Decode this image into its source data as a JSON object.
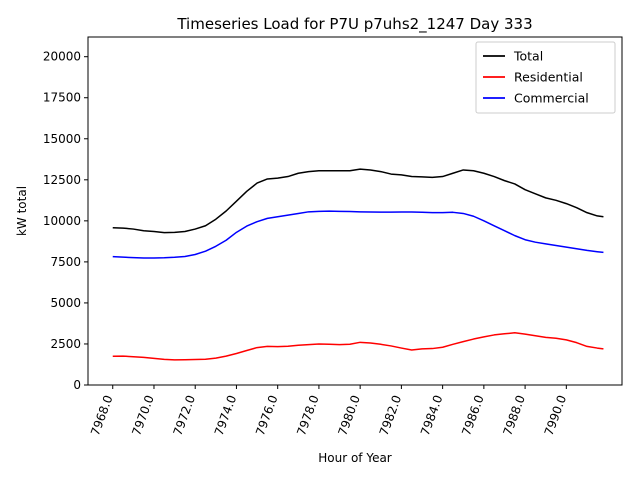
{
  "chart_data": {
    "type": "line",
    "title": "Timeseries Load for P7U p7uhs2_1247  Day 333",
    "xlabel": "Hour of Year",
    "ylabel": "kW total",
    "xlim": [
      7966.8,
      7992.7
    ],
    "ylim": [
      0,
      21200
    ],
    "grid": false,
    "legend_position": "top-right",
    "x_ticks": [
      7968,
      7970,
      7972,
      7974,
      7976,
      7978,
      7980,
      7982,
      7984,
      7986,
      7988,
      7990
    ],
    "x_tick_labels": [
      "7968.0",
      "7970.0",
      "7972.0",
      "7974.0",
      "7976.0",
      "7978.0",
      "7980.0",
      "7982.0",
      "7984.0",
      "7986.0",
      "7988.0",
      "7990.0"
    ],
    "y_ticks": [
      0,
      2500,
      5000,
      7500,
      10000,
      12500,
      15000,
      17500,
      20000
    ],
    "y_tick_labels": [
      "0",
      "2500",
      "5000",
      "7500",
      "10000",
      "12500",
      "15000",
      "17500",
      "20000"
    ],
    "series": [
      {
        "name": "Total",
        "color": "#000000",
        "points": [
          [
            7968.0,
            9580
          ],
          [
            7968.5,
            9560
          ],
          [
            7969.0,
            9500
          ],
          [
            7969.5,
            9400
          ],
          [
            7970.0,
            9350
          ],
          [
            7970.5,
            9280
          ],
          [
            7971.0,
            9300
          ],
          [
            7971.5,
            9350
          ],
          [
            7972.0,
            9500
          ],
          [
            7972.5,
            9700
          ],
          [
            7973.0,
            10100
          ],
          [
            7973.5,
            10600
          ],
          [
            7974.0,
            11200
          ],
          [
            7974.5,
            11800
          ],
          [
            7975.0,
            12300
          ],
          [
            7975.5,
            12550
          ],
          [
            7976.0,
            12600
          ],
          [
            7976.5,
            12700
          ],
          [
            7977.0,
            12900
          ],
          [
            7977.5,
            13000
          ],
          [
            7978.0,
            13050
          ],
          [
            7978.5,
            13050
          ],
          [
            7979.0,
            13050
          ],
          [
            7979.5,
            13050
          ],
          [
            7980.0,
            13150
          ],
          [
            7980.5,
            13100
          ],
          [
            7981.0,
            13000
          ],
          [
            7981.5,
            12850
          ],
          [
            7982.0,
            12800
          ],
          [
            7982.5,
            12700
          ],
          [
            7983.0,
            12680
          ],
          [
            7983.5,
            12650
          ],
          [
            7984.0,
            12700
          ],
          [
            7984.5,
            12900
          ],
          [
            7985.0,
            13100
          ],
          [
            7985.5,
            13050
          ],
          [
            7986.0,
            12900
          ],
          [
            7986.5,
            12700
          ],
          [
            7987.0,
            12450
          ],
          [
            7987.5,
            12250
          ],
          [
            7988.0,
            11900
          ],
          [
            7988.5,
            11650
          ],
          [
            7989.0,
            11400
          ],
          [
            7989.5,
            11250
          ],
          [
            7990.0,
            11050
          ],
          [
            7990.5,
            10800
          ],
          [
            7991.0,
            10500
          ],
          [
            7991.5,
            10300
          ],
          [
            7991.8,
            10250
          ]
        ]
      },
      {
        "name": "Residential",
        "color": "#ff0000",
        "points": [
          [
            7968.0,
            1750
          ],
          [
            7968.5,
            1760
          ],
          [
            7969.0,
            1720
          ],
          [
            7969.5,
            1680
          ],
          [
            7970.0,
            1620
          ],
          [
            7970.5,
            1560
          ],
          [
            7971.0,
            1530
          ],
          [
            7971.5,
            1540
          ],
          [
            7972.0,
            1550
          ],
          [
            7972.5,
            1570
          ],
          [
            7973.0,
            1640
          ],
          [
            7973.5,
            1760
          ],
          [
            7974.0,
            1920
          ],
          [
            7974.5,
            2100
          ],
          [
            7975.0,
            2280
          ],
          [
            7975.5,
            2350
          ],
          [
            7976.0,
            2340
          ],
          [
            7976.5,
            2360
          ],
          [
            7977.0,
            2420
          ],
          [
            7977.5,
            2460
          ],
          [
            7978.0,
            2500
          ],
          [
            7978.5,
            2480
          ],
          [
            7979.0,
            2460
          ],
          [
            7979.5,
            2480
          ],
          [
            7980.0,
            2600
          ],
          [
            7980.5,
            2560
          ],
          [
            7981.0,
            2480
          ],
          [
            7981.5,
            2380
          ],
          [
            7982.0,
            2250
          ],
          [
            7982.5,
            2130
          ],
          [
            7983.0,
            2200
          ],
          [
            7983.5,
            2220
          ],
          [
            7984.0,
            2300
          ],
          [
            7984.5,
            2480
          ],
          [
            7985.0,
            2640
          ],
          [
            7985.5,
            2800
          ],
          [
            7986.0,
            2930
          ],
          [
            7986.5,
            3050
          ],
          [
            7987.0,
            3120
          ],
          [
            7987.5,
            3180
          ],
          [
            7988.0,
            3100
          ],
          [
            7988.5,
            3000
          ],
          [
            7989.0,
            2900
          ],
          [
            7989.5,
            2850
          ],
          [
            7990.0,
            2750
          ],
          [
            7990.5,
            2580
          ],
          [
            7991.0,
            2350
          ],
          [
            7991.5,
            2250
          ],
          [
            7991.8,
            2200
          ]
        ]
      },
      {
        "name": "Commercial",
        "color": "#0000ff",
        "points": [
          [
            7968.0,
            7820
          ],
          [
            7968.5,
            7790
          ],
          [
            7969.0,
            7760
          ],
          [
            7969.5,
            7740
          ],
          [
            7970.0,
            7740
          ],
          [
            7970.5,
            7750
          ],
          [
            7971.0,
            7780
          ],
          [
            7971.5,
            7830
          ],
          [
            7972.0,
            7950
          ],
          [
            7972.5,
            8150
          ],
          [
            7973.0,
            8450
          ],
          [
            7973.5,
            8820
          ],
          [
            7974.0,
            9300
          ],
          [
            7974.5,
            9680
          ],
          [
            7975.0,
            9950
          ],
          [
            7975.5,
            10150
          ],
          [
            7976.0,
            10250
          ],
          [
            7976.5,
            10350
          ],
          [
            7977.0,
            10450
          ],
          [
            7977.5,
            10550
          ],
          [
            7978.0,
            10580
          ],
          [
            7978.5,
            10590
          ],
          [
            7979.0,
            10580
          ],
          [
            7979.5,
            10570
          ],
          [
            7980.0,
            10550
          ],
          [
            7980.5,
            10540
          ],
          [
            7981.0,
            10530
          ],
          [
            7981.5,
            10530
          ],
          [
            7982.0,
            10540
          ],
          [
            7982.5,
            10540
          ],
          [
            7983.0,
            10520
          ],
          [
            7983.5,
            10500
          ],
          [
            7984.0,
            10500
          ],
          [
            7984.5,
            10520
          ],
          [
            7985.0,
            10450
          ],
          [
            7985.5,
            10280
          ],
          [
            7986.0,
            10000
          ],
          [
            7986.5,
            9700
          ],
          [
            7987.0,
            9400
          ],
          [
            7987.5,
            9100
          ],
          [
            7988.0,
            8850
          ],
          [
            7988.5,
            8700
          ],
          [
            7989.0,
            8600
          ],
          [
            7989.5,
            8500
          ],
          [
            7990.0,
            8400
          ],
          [
            7990.5,
            8300
          ],
          [
            7991.0,
            8200
          ],
          [
            7991.5,
            8120
          ],
          [
            7991.8,
            8080
          ]
        ]
      }
    ]
  }
}
